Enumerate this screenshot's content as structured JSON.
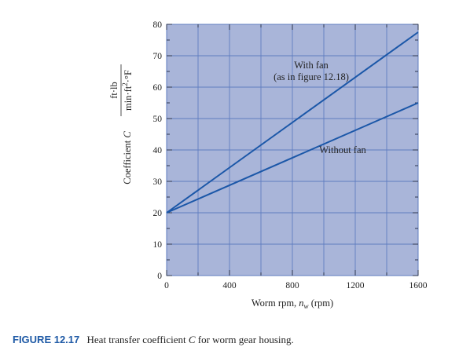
{
  "chart_data": {
    "type": "line",
    "xlabel_parts": [
      "Worm rpm, ",
      "n",
      "w",
      " (rpm)"
    ],
    "ylabel_parts": [
      "Coefficient ",
      "C"
    ],
    "ylabel_fraction": {
      "numerator": "ft·lb",
      "denominator_parts": [
        "min·ft",
        "2",
        "·°F"
      ]
    },
    "xlim": [
      0,
      1600
    ],
    "ylim": [
      0,
      80
    ],
    "x_ticks": [
      0,
      400,
      800,
      1200,
      1600
    ],
    "y_ticks": [
      0,
      10,
      20,
      30,
      40,
      50,
      60,
      70,
      80
    ],
    "grid": true,
    "background_color": "#a9b5d9",
    "grid_color": "#5f7dc0",
    "series": [
      {
        "name": "With fan",
        "x": [
          0,
          1600
        ],
        "y": [
          20,
          77.5
        ],
        "color": "#1b57a8"
      },
      {
        "name": "Without fan",
        "x": [
          0,
          1600
        ],
        "y": [
          20,
          55
        ],
        "color": "#1b57a8"
      }
    ],
    "annotations": [
      {
        "lines": [
          "With fan",
          "(as in figure 12.18)"
        ],
        "x": 920,
        "y": 66
      },
      {
        "lines": [
          "Without fan"
        ],
        "x": 1120,
        "y": 39
      }
    ]
  },
  "caption": {
    "label": "FIGURE 12.17",
    "text_parts": [
      "Heat transfer coefficient ",
      "C",
      " for worm gear housing."
    ]
  }
}
